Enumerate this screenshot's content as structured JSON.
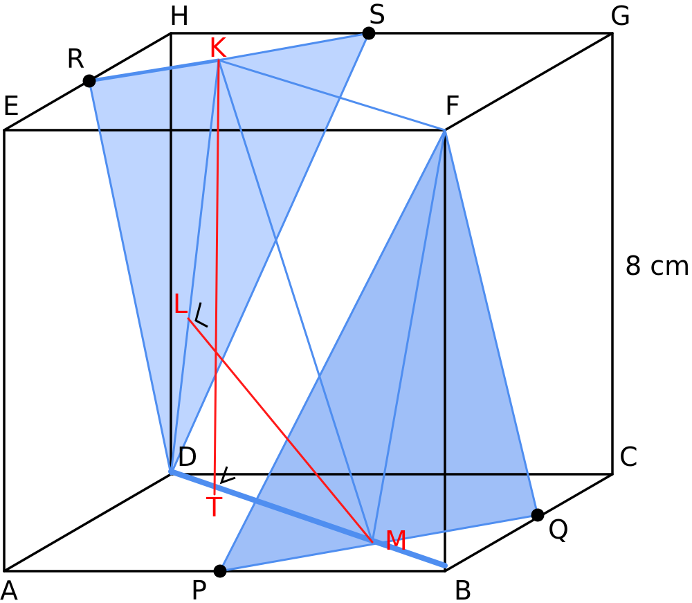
{
  "colors": {
    "edge": "#000000",
    "blue_line": "#4f8ef0",
    "blue_fill_light": "#b3ceff",
    "blue_fill_dark": "#8eb4f7",
    "red": "#ff1a1a",
    "dot": "#000000"
  },
  "vertex_labels": {
    "A": "A",
    "B": "B",
    "C": "C",
    "D": "D",
    "E": "E",
    "F": "F",
    "G": "G",
    "H": "H"
  },
  "point_labels": {
    "P": "P",
    "Q": "Q",
    "R": "R",
    "S": "S",
    "K": "K",
    "L": "L",
    "M": "M",
    "T": "T"
  },
  "edge_length_label": "8 cm"
}
